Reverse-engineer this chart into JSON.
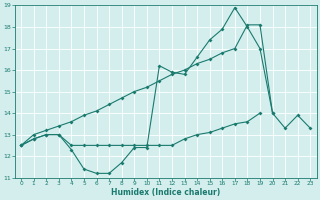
{
  "xlabel": "Humidex (Indice chaleur)",
  "x": [
    0,
    1,
    2,
    3,
    4,
    5,
    6,
    7,
    8,
    9,
    10,
    11,
    12,
    13,
    14,
    15,
    16,
    17,
    18,
    19,
    20,
    21,
    22,
    23
  ],
  "line1": [
    12.5,
    12.8,
    13.0,
    13.0,
    12.3,
    11.4,
    11.2,
    11.2,
    11.7,
    12.4,
    12.4,
    16.2,
    15.9,
    15.8,
    16.6,
    17.4,
    17.9,
    18.9,
    18.0,
    17.0,
    14.0,
    null,
    null,
    null
  ],
  "line2": [
    12.5,
    12.8,
    13.0,
    13.0,
    12.5,
    12.5,
    12.5,
    12.5,
    12.5,
    12.5,
    12.5,
    12.5,
    12.5,
    12.8,
    13.0,
    13.1,
    13.3,
    13.5,
    13.6,
    14.0,
    null,
    null,
    null,
    null
  ],
  "line3": [
    12.5,
    13.0,
    13.2,
    13.4,
    13.6,
    13.9,
    14.1,
    14.4,
    14.7,
    15.0,
    15.2,
    15.5,
    15.8,
    16.0,
    16.3,
    16.5,
    16.8,
    17.0,
    18.1,
    18.1,
    14.0,
    13.3,
    13.9,
    13.3
  ],
  "color": "#1a7a6e",
  "bg_color": "#d4eeee",
  "grid_color": "#ffffff",
  "ylim": [
    11,
    19
  ],
  "xlim": [
    -0.5,
    23.5
  ],
  "yticks": [
    11,
    12,
    13,
    14,
    15,
    16,
    17,
    18,
    19
  ],
  "xticks": [
    0,
    1,
    2,
    3,
    4,
    5,
    6,
    7,
    8,
    9,
    10,
    11,
    12,
    13,
    14,
    15,
    16,
    17,
    18,
    19,
    20,
    21,
    22,
    23
  ]
}
